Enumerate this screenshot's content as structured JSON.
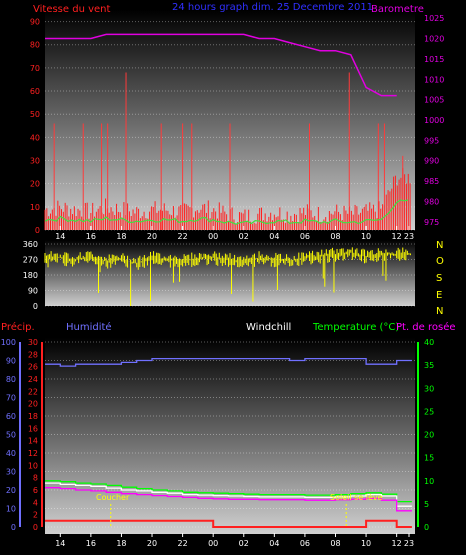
{
  "colors": {
    "wind": "#ff2020",
    "wind_gust": "#ff3a3a",
    "wind_avg": "#40e040",
    "pressure": "#e000e0",
    "direction": "#ffff00",
    "humidity": "#7070ff",
    "windchill": "#ffffff",
    "temperature": "#00ff00",
    "dewpoint": "#ff00ff",
    "precip": "#ff2020",
    "title": "#3030ff",
    "sun_marker": "#ffff00"
  },
  "top_chart": {
    "title": "24 hours graph  dim. 25 Decembre 2011",
    "left_label": "Vitesse du vent",
    "right_label": "Barometre",
    "y_left_ticks": [
      "0",
      "10",
      "20",
      "30",
      "40",
      "50",
      "60",
      "70",
      "80",
      "90"
    ],
    "y_right_ticks": [
      "975",
      "980",
      "985",
      "990",
      "995",
      "1000",
      "1005",
      "1010",
      "1015",
      "1020",
      "1025"
    ]
  },
  "mid_chart": {
    "y_ticks": [
      "0",
      "90",
      "180",
      "270",
      "360"
    ],
    "compass": [
      "N",
      "O",
      "S",
      "E",
      "N"
    ]
  },
  "bottom_chart": {
    "label_precip": "Précip.",
    "label_humidity": "Humidité",
    "label_windchill": "Windchill",
    "label_temperature": "Temperature (°C)",
    "label_dewpoint": "Pt. de rosée",
    "y_humidity_ticks": [
      "0",
      "10",
      "20",
      "30",
      "40",
      "50",
      "60",
      "70",
      "80",
      "90",
      "100"
    ],
    "y_precip_ticks": [
      "0",
      "2",
      "4",
      "6",
      "8",
      "10",
      "12",
      "14",
      "16",
      "18",
      "20",
      "22",
      "24",
      "26",
      "28",
      "30"
    ],
    "y_temp_ticks": [
      "0",
      "5",
      "10",
      "15",
      "20",
      "25",
      "30",
      "35",
      "40"
    ],
    "sunset_label": "Coucher",
    "sunrise_label": "Soleil se lève"
  },
  "x_ticks": [
    "14",
    "16",
    "18",
    "20",
    "22",
    "00",
    "02",
    "04",
    "06",
    "08",
    "10",
    "12",
    "14",
    "16",
    "18",
    "20",
    "22",
    "23"
  ],
  "chart_data": [
    {
      "type": "line",
      "title": "24 hours graph  dim. 25 Decembre 2011",
      "x_hours": [
        13,
        14,
        15,
        16,
        17,
        18,
        19,
        20,
        21,
        22,
        23,
        0,
        1,
        2,
        3,
        4,
        5,
        6,
        7,
        8,
        9,
        10,
        11,
        12
      ],
      "series": [
        {
          "name": "Vitesse du vent",
          "axis": "left",
          "ylim": [
            0,
            95
          ],
          "values": [
            8,
            9,
            8,
            7,
            9,
            8,
            7,
            8,
            8,
            7,
            9,
            8,
            6,
            5,
            6,
            7,
            6,
            7,
            6,
            7,
            6,
            7,
            8,
            22
          ],
          "gusts": [
            {
              "hour": 13.6,
              "value": 46
            },
            {
              "hour": 15.5,
              "value": 46
            },
            {
              "hour": 16.7,
              "value": 46
            },
            {
              "hour": 17.1,
              "value": 46
            },
            {
              "hour": 18.3,
              "value": 68
            },
            {
              "hour": 20.6,
              "value": 46
            },
            {
              "hour": 22.0,
              "value": 46
            },
            {
              "hour": 22.6,
              "value": 46
            },
            {
              "hour": 1.1,
              "value": 46
            },
            {
              "hour": 6.3,
              "value": 46
            },
            {
              "hour": 8.9,
              "value": 68
            },
            {
              "hour": 10.8,
              "value": 46
            },
            {
              "hour": 11.2,
              "value": 46
            },
            {
              "hour": 12.4,
              "value": 32
            }
          ]
        },
        {
          "name": "Barometre",
          "axis": "right",
          "ylim": [
            973,
            1027
          ],
          "values": [
            1020,
            1020,
            1020,
            1020,
            1021,
            1021,
            1021,
            1021,
            1021,
            1021,
            1021,
            1021,
            1021,
            1021,
            1020,
            1020,
            1019,
            1018,
            1017,
            1017,
            1016,
            1008,
            1006,
            1006
          ]
        }
      ]
    },
    {
      "type": "scatter",
      "ylim": [
        0,
        360
      ],
      "x_hours": [
        13,
        14,
        15,
        16,
        17,
        18,
        19,
        20,
        21,
        22,
        23,
        0,
        1,
        2,
        3,
        4,
        5,
        6,
        7,
        8,
        9,
        10,
        11,
        12
      ],
      "series": [
        {
          "name": "Direction",
          "values": [
            290,
            280,
            270,
            285,
            260,
            270,
            250,
            280,
            270,
            265,
            275,
            280,
            270,
            250,
            280,
            270,
            260,
            280,
            290,
            300,
            310,
            290,
            300,
            300
          ]
        }
      ]
    },
    {
      "type": "line",
      "x_hours": [
        13,
        14,
        15,
        16,
        17,
        18,
        19,
        20,
        21,
        22,
        23,
        0,
        1,
        2,
        3,
        4,
        5,
        6,
        7,
        8,
        9,
        10,
        11,
        12
      ],
      "series": [
        {
          "name": "Humidité",
          "axis": "humidity",
          "ylim": [
            0,
            100
          ],
          "values": [
            88,
            87,
            88,
            88,
            88,
            89,
            90,
            91,
            91,
            91,
            91,
            91,
            91,
            91,
            91,
            91,
            90,
            91,
            91,
            91,
            91,
            88,
            88,
            90
          ]
        },
        {
          "name": "Temperature (°C)",
          "axis": "temp",
          "ylim": [
            0,
            40
          ],
          "values": [
            10.0,
            9.8,
            9.5,
            9.3,
            9.0,
            8.6,
            8.3,
            8.0,
            7.8,
            7.5,
            7.4,
            7.3,
            7.2,
            7.1,
            7.0,
            7.0,
            7.0,
            6.9,
            6.9,
            7.0,
            7.2,
            7.4,
            7.1,
            5.5
          ]
        },
        {
          "name": "Windchill",
          "axis": "temp",
          "ylim": [
            0,
            40
          ],
          "values": [
            9.5,
            9.2,
            9.0,
            8.8,
            8.4,
            8.0,
            7.8,
            7.5,
            7.3,
            7.0,
            6.9,
            6.8,
            6.7,
            6.6,
            6.5,
            6.5,
            6.5,
            6.4,
            6.4,
            6.5,
            6.7,
            7.0,
            6.7,
            4.5
          ]
        },
        {
          "name": "Pt. de rosée",
          "axis": "temp",
          "ylim": [
            0,
            40
          ],
          "values": [
            8.5,
            8.3,
            8.0,
            7.8,
            7.5,
            7.2,
            7.0,
            6.8,
            6.6,
            6.4,
            6.2,
            6.1,
            6.0,
            6.0,
            5.9,
            5.9,
            5.9,
            5.8,
            5.8,
            5.9,
            6.0,
            6.2,
            5.8,
            3.5
          ]
        },
        {
          "name": "Précip.",
          "axis": "precip",
          "ylim": [
            0,
            30
          ],
          "values": [
            1,
            1,
            1,
            1,
            1,
            1,
            1,
            1,
            1,
            1,
            1,
            0,
            0,
            0,
            0,
            0,
            0,
            0,
            0,
            0,
            0,
            1,
            1,
            0
          ]
        }
      ]
    }
  ]
}
